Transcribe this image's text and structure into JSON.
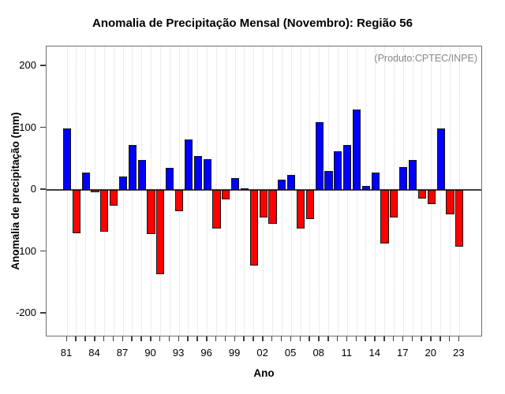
{
  "annotation": "(Produto:CPTEC/INPE)",
  "chart_data": {
    "type": "bar",
    "title": "Anomalia de Precipitação Mensal (Novembro): Região 56",
    "xlabel": "Ano",
    "ylabel": "Anomalia de precipitação (mm)",
    "x": [
      1981,
      1982,
      1983,
      1984,
      1985,
      1986,
      1987,
      1988,
      1989,
      1990,
      1991,
      1992,
      1993,
      1994,
      1995,
      1996,
      1997,
      1998,
      1999,
      2000,
      2001,
      2002,
      2003,
      2004,
      2005,
      2006,
      2007,
      2008,
      2009,
      2010,
      2011,
      2012,
      2013,
      2014,
      2015,
      2016,
      2017,
      2018,
      2019,
      2020,
      2021,
      2022,
      2023
    ],
    "values": [
      100,
      -70,
      28,
      -4,
      -68,
      -25,
      22,
      72,
      48,
      -71,
      -136,
      36,
      -35,
      82,
      55,
      50,
      -62,
      -15,
      19,
      3,
      -122,
      -45,
      -55,
      16,
      24,
      -62,
      -47,
      110,
      31,
      62,
      72,
      130,
      6,
      28,
      -86,
      -45,
      37,
      49,
      -14,
      -23,
      99,
      -40,
      -92
    ],
    "ylim": [
      -238,
      232
    ],
    "yticks": [
      -200,
      -100,
      0,
      100,
      200
    ],
    "ytick_labels": [
      "-200",
      "-100",
      "0",
      "100",
      "200"
    ],
    "xtick_label_years": [
      1981,
      1984,
      1987,
      1990,
      1993,
      1996,
      1999,
      2002,
      2005,
      2008,
      2011,
      2014,
      2017,
      2020,
      2023
    ],
    "xtick_labels": [
      "81",
      "84",
      "87",
      "90",
      "93",
      "96",
      "99",
      "02",
      "05",
      "08",
      "11",
      "14",
      "17",
      "20",
      "23"
    ],
    "grid": "vertical-dotted",
    "legend": "none",
    "colors": {
      "positive": "#0000ff",
      "negative": "#ff0000",
      "bar_border": "#141414",
      "grid": "#d9d9d9",
      "annotation_text": "#878787",
      "axis": "#3d3d3d"
    }
  }
}
